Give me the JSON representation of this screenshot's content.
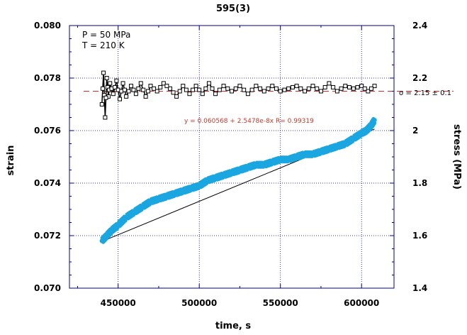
{
  "chart_data": {
    "type": "scatter",
    "title": "595(3)",
    "xlabel": "time, s",
    "ylabel_left": "strain",
    "ylabel_right": "stress (MPa)",
    "xlim": [
      420000,
      620000
    ],
    "ylim_left": [
      0.07,
      0.08
    ],
    "ylim_right": [
      1.4,
      2.4
    ],
    "x_ticks": [
      450000,
      500000,
      550000,
      600000
    ],
    "x_tick_labels": [
      "450000",
      "500000",
      "550000",
      "600000"
    ],
    "y_left_ticks": [
      0.07,
      0.072,
      0.074,
      0.076,
      0.078,
      0.08
    ],
    "y_left_tick_labels": [
      "0.070",
      "0.072",
      "0.074",
      "0.076",
      "0.078",
      "0.080"
    ],
    "y_right_ticks": [
      1.4,
      1.6,
      1.8,
      2.0,
      2.2,
      2.4
    ],
    "y_right_tick_labels": [
      "1.4",
      "1.6",
      "1.8",
      "2",
      "2.2",
      "2.4"
    ],
    "grid": true,
    "annotations": [
      "P = 50 MPa",
      "T = 210 K"
    ],
    "fit_label": "y = 0.060568 + 2.5478e-8x   R= 0.99319",
    "fit": {
      "intercept": 0.060568,
      "slope": 2.5478e-08,
      "x_range": [
        440000,
        608000
      ]
    },
    "mean_stress_label": "σ = 2.15 ± 0.1",
    "mean_stress": 2.15,
    "colors": {
      "strain": "#1aa6e0",
      "stress": "#000000",
      "fit": "#000000",
      "mean_line": "#d62728",
      "frame": "#00008b",
      "grid": "#00008b"
    },
    "series": [
      {
        "axis": "left",
        "marker": "filled-circle",
        "x": [
          440000,
          443000,
          446000,
          450000,
          455000,
          460000,
          465000,
          470000,
          475000,
          480000,
          485000,
          490000,
          495000,
          500000,
          505000,
          510000,
          515000,
          520000,
          525000,
          530000,
          535000,
          540000,
          545000,
          550000,
          555000,
          560000,
          565000,
          570000,
          575000,
          580000,
          585000,
          590000,
          595000,
          600000,
          603000,
          606000,
          608000
        ],
        "y": [
          0.0718,
          0.072,
          0.0722,
          0.0724,
          0.0727,
          0.0729,
          0.0731,
          0.0733,
          0.0734,
          0.0735,
          0.0736,
          0.0737,
          0.0738,
          0.0739,
          0.0741,
          0.0742,
          0.0743,
          0.0744,
          0.0745,
          0.0746,
          0.0747,
          0.0747,
          0.0748,
          0.0749,
          0.0749,
          0.075,
          0.0751,
          0.0751,
          0.0752,
          0.0753,
          0.0754,
          0.0755,
          0.0757,
          0.0759,
          0.076,
          0.0762,
          0.0764
        ]
      },
      {
        "axis": "right",
        "marker": "open-square",
        "x": [
          440000,
          441000,
          442000,
          443000,
          444000,
          445000,
          447000,
          449000,
          451000,
          453000,
          455000,
          458000,
          461000,
          464000,
          467000,
          470000,
          474000,
          478000,
          482000,
          486000,
          490000,
          494000,
          498000,
          502000,
          506000,
          510000,
          515000,
          520000,
          525000,
          530000,
          535000,
          540000,
          545000,
          550000,
          555000,
          560000,
          565000,
          570000,
          575000,
          580000,
          585000,
          590000,
          595000,
          600000,
          604000,
          608000
        ],
        "y": [
          2.1,
          2.22,
          2.05,
          2.2,
          2.13,
          2.18,
          2.14,
          2.19,
          2.12,
          2.18,
          2.13,
          2.17,
          2.14,
          2.18,
          2.13,
          2.17,
          2.15,
          2.18,
          2.16,
          2.13,
          2.17,
          2.14,
          2.17,
          2.14,
          2.18,
          2.14,
          2.17,
          2.15,
          2.17,
          2.14,
          2.17,
          2.15,
          2.17,
          2.15,
          2.16,
          2.17,
          2.15,
          2.17,
          2.15,
          2.18,
          2.15,
          2.17,
          2.16,
          2.17,
          2.15,
          2.17
        ]
      }
    ]
  }
}
